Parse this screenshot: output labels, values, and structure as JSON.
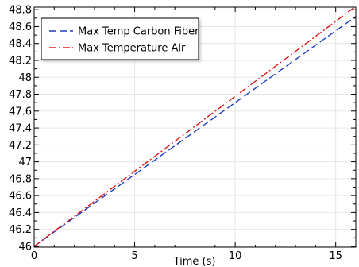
{
  "chart_data": {
    "type": "line",
    "title": "",
    "xlabel": "Time (s)",
    "ylabel": "",
    "xlim": [
      0,
      16
    ],
    "ylim": [
      45.99,
      48.83
    ],
    "grid": true,
    "legend_position": "top-left",
    "x_ticks": [
      0,
      5,
      10,
      15
    ],
    "x_tick_labels": [
      "0",
      "5",
      "10",
      "15"
    ],
    "y_ticks": [
      46,
      46.2,
      46.4,
      46.6,
      46.8,
      47,
      47.2,
      47.4,
      47.6,
      47.8,
      48,
      48.2,
      48.4,
      48.6,
      48.8
    ],
    "y_tick_labels": [
      "46",
      "46.2",
      "46.4",
      "46.6",
      "46.8",
      "47",
      "47.2",
      "47.4",
      "47.6",
      "47.8",
      "48",
      "48.2",
      "48.4",
      "48.6",
      "48.8"
    ],
    "series": [
      {
        "name": "Max Temp Carbon Fiber",
        "color": "#1f3fbf",
        "line_style": "dashed",
        "x": [
          0,
          4,
          8,
          12,
          16
        ],
        "y": [
          46.0,
          46.68,
          47.36,
          48.04,
          48.72
        ]
      },
      {
        "name": "Max Temperature Air",
        "color": "#e0161c",
        "line_style": "dash-dot",
        "x": [
          0,
          4,
          8,
          12,
          16
        ],
        "y": [
          46.0,
          46.71,
          47.42,
          48.13,
          48.84
        ]
      }
    ]
  }
}
